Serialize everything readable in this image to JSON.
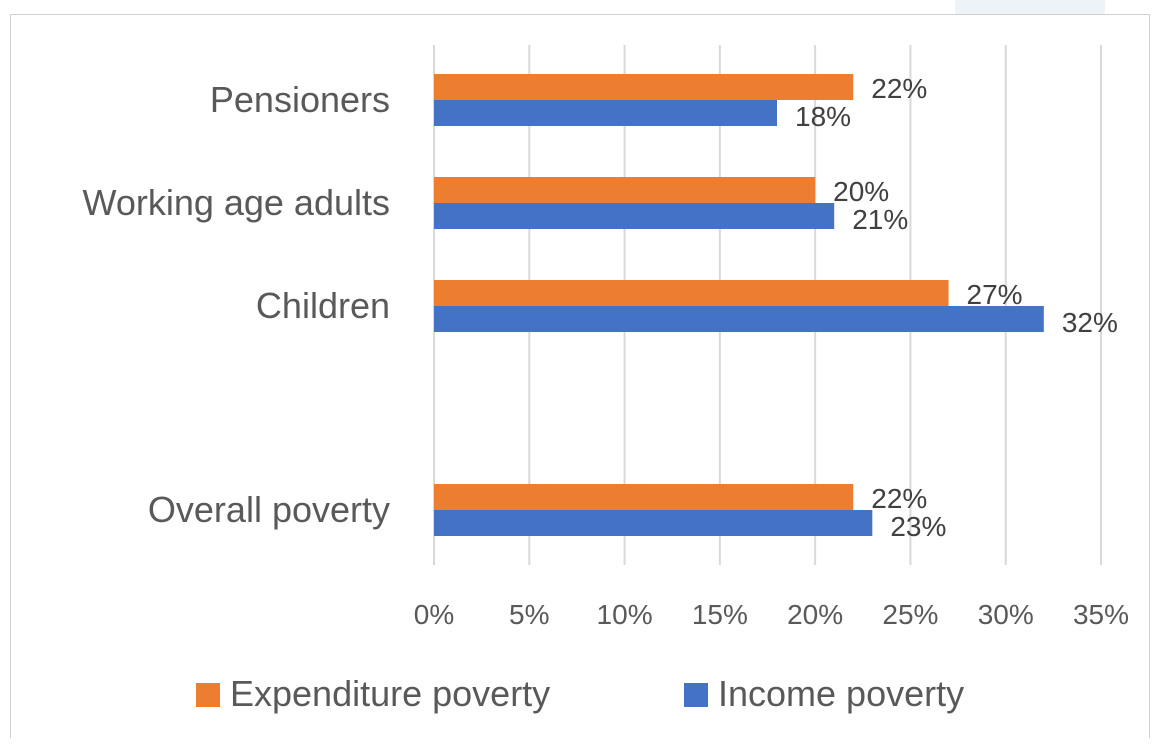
{
  "chart_data": {
    "type": "bar",
    "orientation": "horizontal",
    "categories": [
      "Pensioners",
      "Working age adults",
      "Children",
      "Overall poverty"
    ],
    "series": [
      {
        "name": "Expenditure poverty",
        "color": "#ED7D31",
        "values": [
          22,
          20,
          27,
          22
        ],
        "labels": [
          "22%",
          "20%",
          "27%",
          "22%"
        ]
      },
      {
        "name": "Income poverty",
        "color": "#4472C4",
        "values": [
          18,
          21,
          32,
          23
        ],
        "labels": [
          "18%",
          "21%",
          "32%",
          "23%"
        ]
      }
    ],
    "xlim": [
      0,
      35
    ],
    "x_ticks": [
      "0%",
      "5%",
      "10%",
      "15%",
      "20%",
      "25%",
      "30%",
      "35%"
    ],
    "grid": "vertical",
    "legend_position": "bottom"
  }
}
